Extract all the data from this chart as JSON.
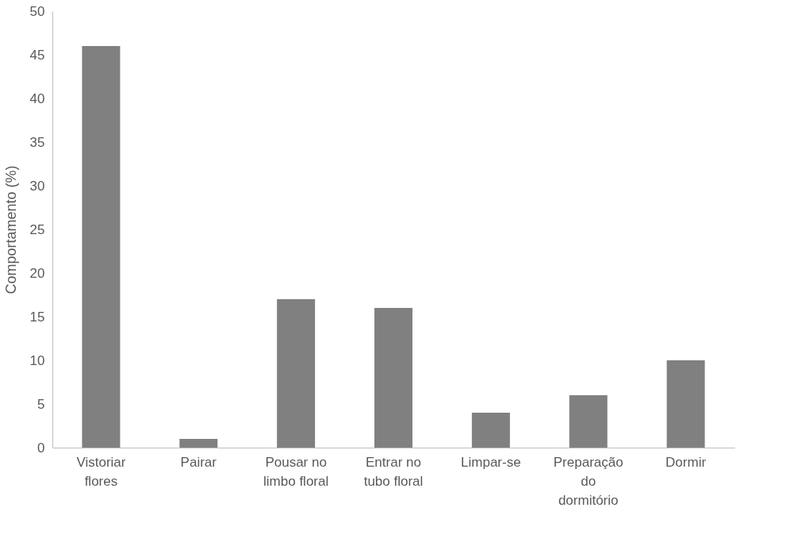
{
  "chart_data": {
    "type": "bar",
    "ylabel": "Comportamento (%)",
    "categories": [
      "Vistoriar flores",
      "Pairar",
      "Pousar no limbo floral",
      "Entrar no tubo floral",
      "Limpar-se",
      "Preparação do dormitório",
      "Dormir"
    ],
    "values": [
      46,
      1,
      17,
      16,
      4,
      6,
      10
    ],
    "color": "#808080",
    "ylim": [
      0,
      50
    ],
    "yticks": [
      0,
      5,
      10,
      15,
      20,
      25,
      30,
      35,
      40,
      45,
      50
    ],
    "grid": false
  }
}
